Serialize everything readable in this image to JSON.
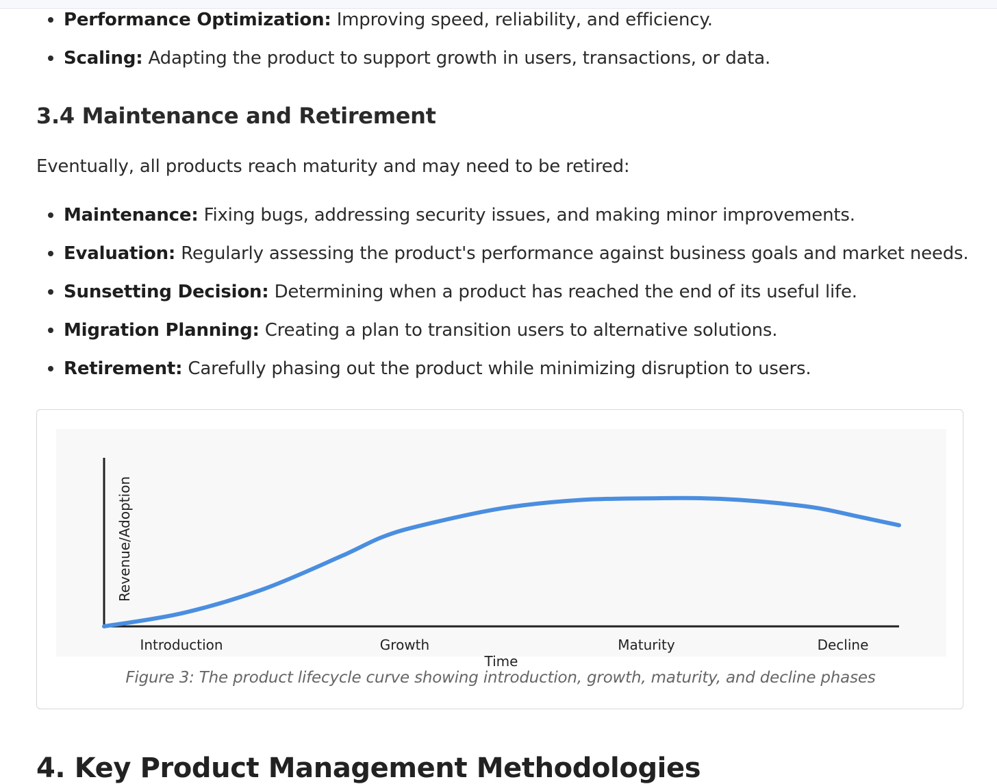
{
  "top_list": [
    {
      "term": "Performance Optimization:",
      "desc": "Improving speed, reliability, and efficiency."
    },
    {
      "term": "Scaling:",
      "desc": "Adapting the product to support growth in users, transactions, or data."
    }
  ],
  "section_3_4": {
    "heading": "3.4 Maintenance and Retirement",
    "intro": "Eventually, all products reach maturity and may need to be retired:",
    "items": [
      {
        "term": "Maintenance:",
        "desc": "Fixing bugs, addressing security issues, and making minor improvements."
      },
      {
        "term": "Evaluation:",
        "desc": "Regularly assessing the product's performance against business goals and market needs."
      },
      {
        "term": "Sunsetting Decision:",
        "desc": "Determining when a product has reached the end of its useful life."
      },
      {
        "term": "Migration Planning:",
        "desc": "Creating a plan to transition users to alternative solutions."
      },
      {
        "term": "Retirement:",
        "desc": "Carefully phasing out the product while minimizing disruption to users."
      }
    ]
  },
  "figure": {
    "caption": "Figure 3: The product lifecycle curve showing introduction, growth, maturity, and decline phases"
  },
  "chart_data": {
    "type": "line",
    "title": "",
    "xlabel": "Time",
    "ylabel": "Revenue/Adoption",
    "categories": [
      "Introduction",
      "Growth",
      "Maturity",
      "Decline"
    ],
    "xlim": [
      0,
      100
    ],
    "ylim": [
      0,
      100
    ],
    "series": [
      {
        "name": "Product lifecycle",
        "color": "#4a8ee0",
        "x": [
          0,
          10,
          20,
          30,
          35,
          40,
          50,
          60,
          70,
          75,
          80,
          85,
          90,
          95,
          100
        ],
        "y": [
          0,
          8,
          22,
          42,
          53,
          60,
          70,
          75,
          76,
          76,
          75,
          73,
          70,
          65,
          60
        ]
      }
    ],
    "grid": false,
    "legend": "none"
  },
  "section_4": {
    "heading": "4. Key Product Management Methodologies"
  }
}
